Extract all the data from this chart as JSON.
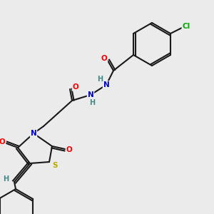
{
  "bg_color": "#ebebeb",
  "bond_color": "#1a1a1a",
  "atom_colors": {
    "O": "#ff0000",
    "N": "#0000cc",
    "S": "#bbaa00",
    "Cl": "#00aa00",
    "H": "#448888",
    "C": "#1a1a1a"
  },
  "figsize": [
    3.0,
    3.0
  ],
  "dpi": 100
}
